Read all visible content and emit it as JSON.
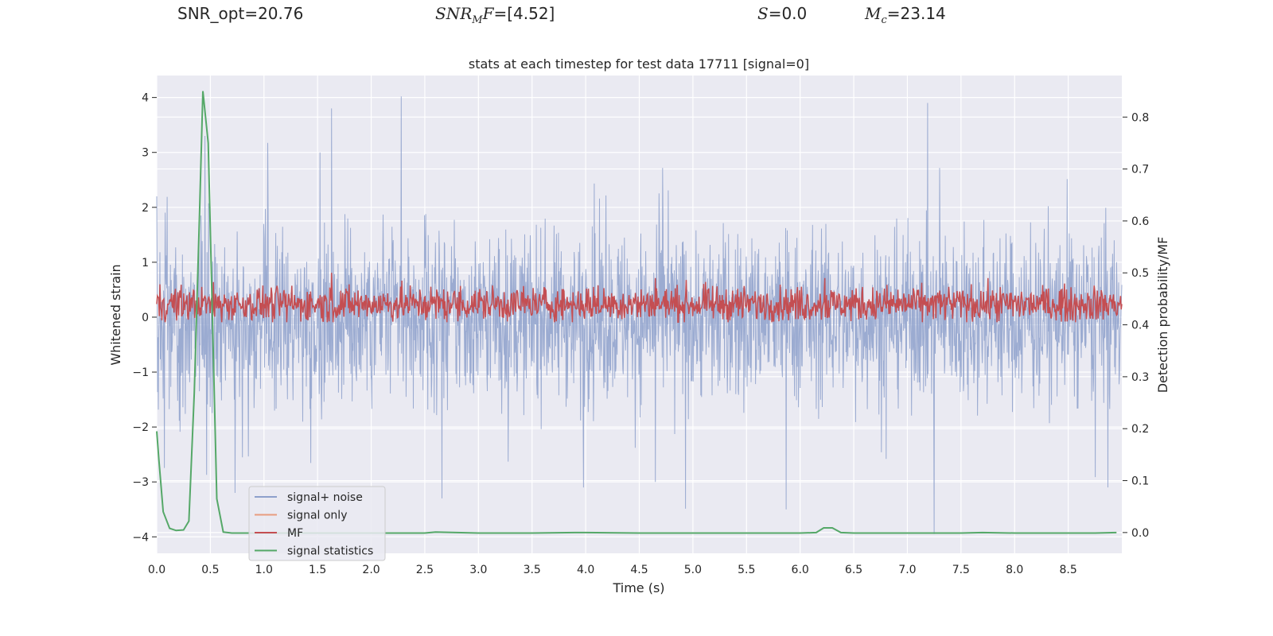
{
  "header": {
    "snr_opt": "SNR_opt=20.76",
    "snr_mf_sym": "SNR",
    "snr_mf_sub": "M",
    "snr_mf_rest": "F=[4.52]",
    "s_sym": "S",
    "s_rest": "=0.0",
    "mc_sym": "M",
    "mc_sub": "c",
    "mc_rest": "=23.14"
  },
  "chart_data": {
    "type": "line",
    "title": "stats at each timestep for test data 17711 [signal=0]",
    "xlabel": "Time (s)",
    "ylabel": "Whitened strain",
    "y2label": "Detection probability/MF",
    "xlim": [
      0,
      9.0
    ],
    "ylim": [
      -4.3,
      4.4
    ],
    "y2lim": [
      -0.04,
      0.88
    ],
    "xticks": [
      "0.0",
      "0.5",
      "1.0",
      "1.5",
      "2.0",
      "2.5",
      "3.0",
      "3.5",
      "4.0",
      "4.5",
      "5.0",
      "5.5",
      "6.0",
      "6.5",
      "7.0",
      "7.5",
      "8.0",
      "8.5"
    ],
    "yticks": [
      "−4",
      "−3",
      "−2",
      "−1",
      "0",
      "1",
      "2",
      "3",
      "4"
    ],
    "y2ticks": [
      "0.0",
      "0.1",
      "0.2",
      "0.3",
      "0.4",
      "0.5",
      "0.6",
      "0.7",
      "0.8"
    ],
    "grid": true,
    "legend_position": "lower-left",
    "colors": {
      "noise": "#8da0cb",
      "signal_only": "#e89c7f",
      "mf": "#c44e52",
      "stat": "#55a868",
      "background": "#eaeaf2",
      "grid": "#ffffff"
    },
    "series": [
      {
        "name": "signal+ noise",
        "axis": "left",
        "note": "dense noise, approx range -4 to 4",
        "x": [
          0.0,
          0.45,
          0.73,
          1.63,
          2.28,
          2.66,
          3.98,
          4.65,
          5.87,
          7.25,
          8.87
        ],
        "y": [
          2.2,
          3.3,
          -3.2,
          3.8,
          4.02,
          -3.3,
          -3.1,
          -3.0,
          -3.5,
          -3.95,
          -3.1
        ]
      },
      {
        "name": "signal only",
        "axis": "left",
        "x": [],
        "y": []
      },
      {
        "name": "MF",
        "axis": "right",
        "note": "fluctuating around 0.44",
        "x": [
          0.0,
          1.63,
          4.65,
          6.23,
          9.0
        ],
        "y": [
          0.44,
          0.5,
          0.49,
          0.49,
          0.44
        ]
      },
      {
        "name": "signal statistics",
        "axis": "right",
        "x": [
          0.0,
          0.02,
          0.06,
          0.12,
          0.18,
          0.25,
          0.3,
          0.35,
          0.4,
          0.43,
          0.48,
          0.56,
          0.62,
          0.7,
          1.0,
          2.0,
          2.5,
          2.6,
          3.0,
          3.5,
          3.9,
          4.0,
          4.5,
          5.0,
          5.5,
          6.0,
          6.15,
          6.22,
          6.3,
          6.38,
          6.5,
          7.0,
          7.5,
          7.7,
          8.0,
          8.5,
          8.75,
          8.95
        ],
        "y": [
          0.195,
          0.14,
          0.04,
          0.008,
          0.004,
          0.005,
          0.022,
          0.27,
          0.62,
          0.85,
          0.75,
          0.065,
          0.001,
          -0.001,
          -0.001,
          -0.001,
          -0.001,
          0.001,
          -0.001,
          -0.001,
          0.0,
          0.0,
          -0.001,
          -0.001,
          -0.001,
          -0.001,
          0.0,
          0.009,
          0.009,
          0.0,
          -0.001,
          -0.001,
          -0.001,
          0.0,
          -0.001,
          -0.001,
          -0.001,
          0.0
        ]
      }
    ]
  }
}
